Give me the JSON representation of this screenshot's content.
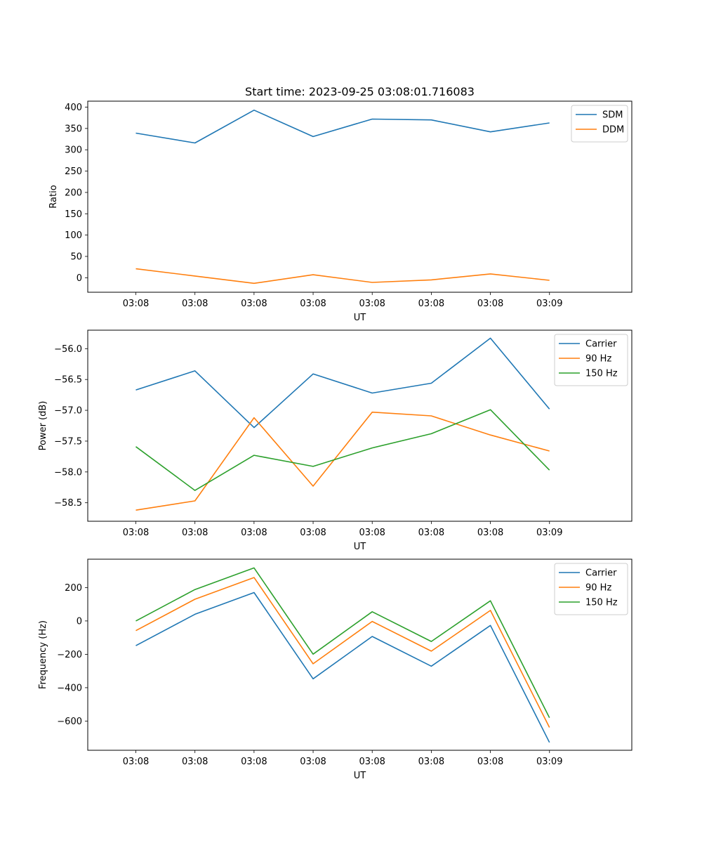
{
  "title": "Start time: 2023-09-25 03:08:01.716083",
  "colors": {
    "blue": "#1f77b4",
    "orange": "#ff7f0e",
    "green": "#2ca02c"
  },
  "chart_data": [
    {
      "type": "line",
      "title": "Start time: 2023-09-25 03:08:01.716083",
      "xlabel": "UT",
      "ylabel": "Ratio",
      "xticklabels": [
        "03:08",
        "03:08",
        "03:08",
        "03:08",
        "03:08",
        "03:08",
        "03:08",
        "03:09"
      ],
      "x": [
        1,
        2,
        3,
        4,
        5,
        6,
        7,
        8
      ],
      "xlim": [
        0.186,
        9.393
      ],
      "ylim": [
        -34,
        414
      ],
      "yticks": [
        0,
        50,
        100,
        150,
        200,
        250,
        300,
        350,
        400
      ],
      "legend": "top-right",
      "series": [
        {
          "name": "SDM",
          "color": "#1f77b4",
          "values": [
            339,
            316,
            393,
            331,
            372,
            370,
            342,
            363
          ]
        },
        {
          "name": "DDM",
          "color": "#ff7f0e",
          "values": [
            21,
            4,
            -13,
            7,
            -11,
            -5,
            9,
            -6
          ]
        }
      ]
    },
    {
      "type": "line",
      "title": "",
      "xlabel": "UT",
      "ylabel": "Power (dB)",
      "xticklabels": [
        "03:08",
        "03:08",
        "03:08",
        "03:08",
        "03:08",
        "03:08",
        "03:08",
        "03:09"
      ],
      "x": [
        1,
        2,
        3,
        4,
        5,
        6,
        7,
        8
      ],
      "xlim": [
        0.186,
        9.393
      ],
      "ylim": [
        -58.8,
        -55.7
      ],
      "yticks": [
        -58.5,
        -58.0,
        -57.5,
        -57.0,
        -56.5,
        -56.0
      ],
      "yticklabels": [
        "−58.5",
        "−58.0",
        "−57.5",
        "−57.0",
        "−56.5",
        "−56.0"
      ],
      "legend": "top-right",
      "series": [
        {
          "name": "Carrier",
          "color": "#1f77b4",
          "values": [
            -56.67,
            -56.36,
            -57.28,
            -56.41,
            -56.72,
            -56.56,
            -55.83,
            -56.98
          ]
        },
        {
          "name": "90 Hz",
          "color": "#ff7f0e",
          "values": [
            -58.62,
            -58.47,
            -57.12,
            -58.23,
            -57.03,
            -57.09,
            -57.4,
            -57.66
          ]
        },
        {
          "name": "150 Hz",
          "color": "#2ca02c",
          "values": [
            -57.59,
            -58.3,
            -57.73,
            -57.91,
            -57.61,
            -57.38,
            -56.99,
            -57.97
          ]
        }
      ]
    },
    {
      "type": "line",
      "title": "",
      "xlabel": "UT",
      "ylabel": "Frequency (Hz)",
      "xticklabels": [
        "03:08",
        "03:08",
        "03:08",
        "03:08",
        "03:08",
        "03:08",
        "03:08",
        "03:09"
      ],
      "x": [
        1,
        2,
        3,
        4,
        5,
        6,
        7,
        8
      ],
      "xlim": [
        0.186,
        9.393
      ],
      "ylim": [
        -775,
        370
      ],
      "yticks": [
        -600,
        -400,
        -200,
        0,
        200
      ],
      "yticklabels": [
        "−600",
        "−400",
        "−200",
        "0",
        "200"
      ],
      "legend": "top-right",
      "series": [
        {
          "name": "Carrier",
          "color": "#1f77b4",
          "values": [
            -148,
            40,
            170,
            -347,
            -93,
            -271,
            -27,
            -728
          ]
        },
        {
          "name": "90 Hz",
          "color": "#ff7f0e",
          "values": [
            -58,
            130,
            260,
            -257,
            -3,
            -181,
            63,
            -638
          ]
        },
        {
          "name": "150 Hz",
          "color": "#2ca02c",
          "values": [
            0,
            188,
            318,
            -199,
            55,
            -123,
            121,
            -580
          ]
        }
      ]
    }
  ]
}
